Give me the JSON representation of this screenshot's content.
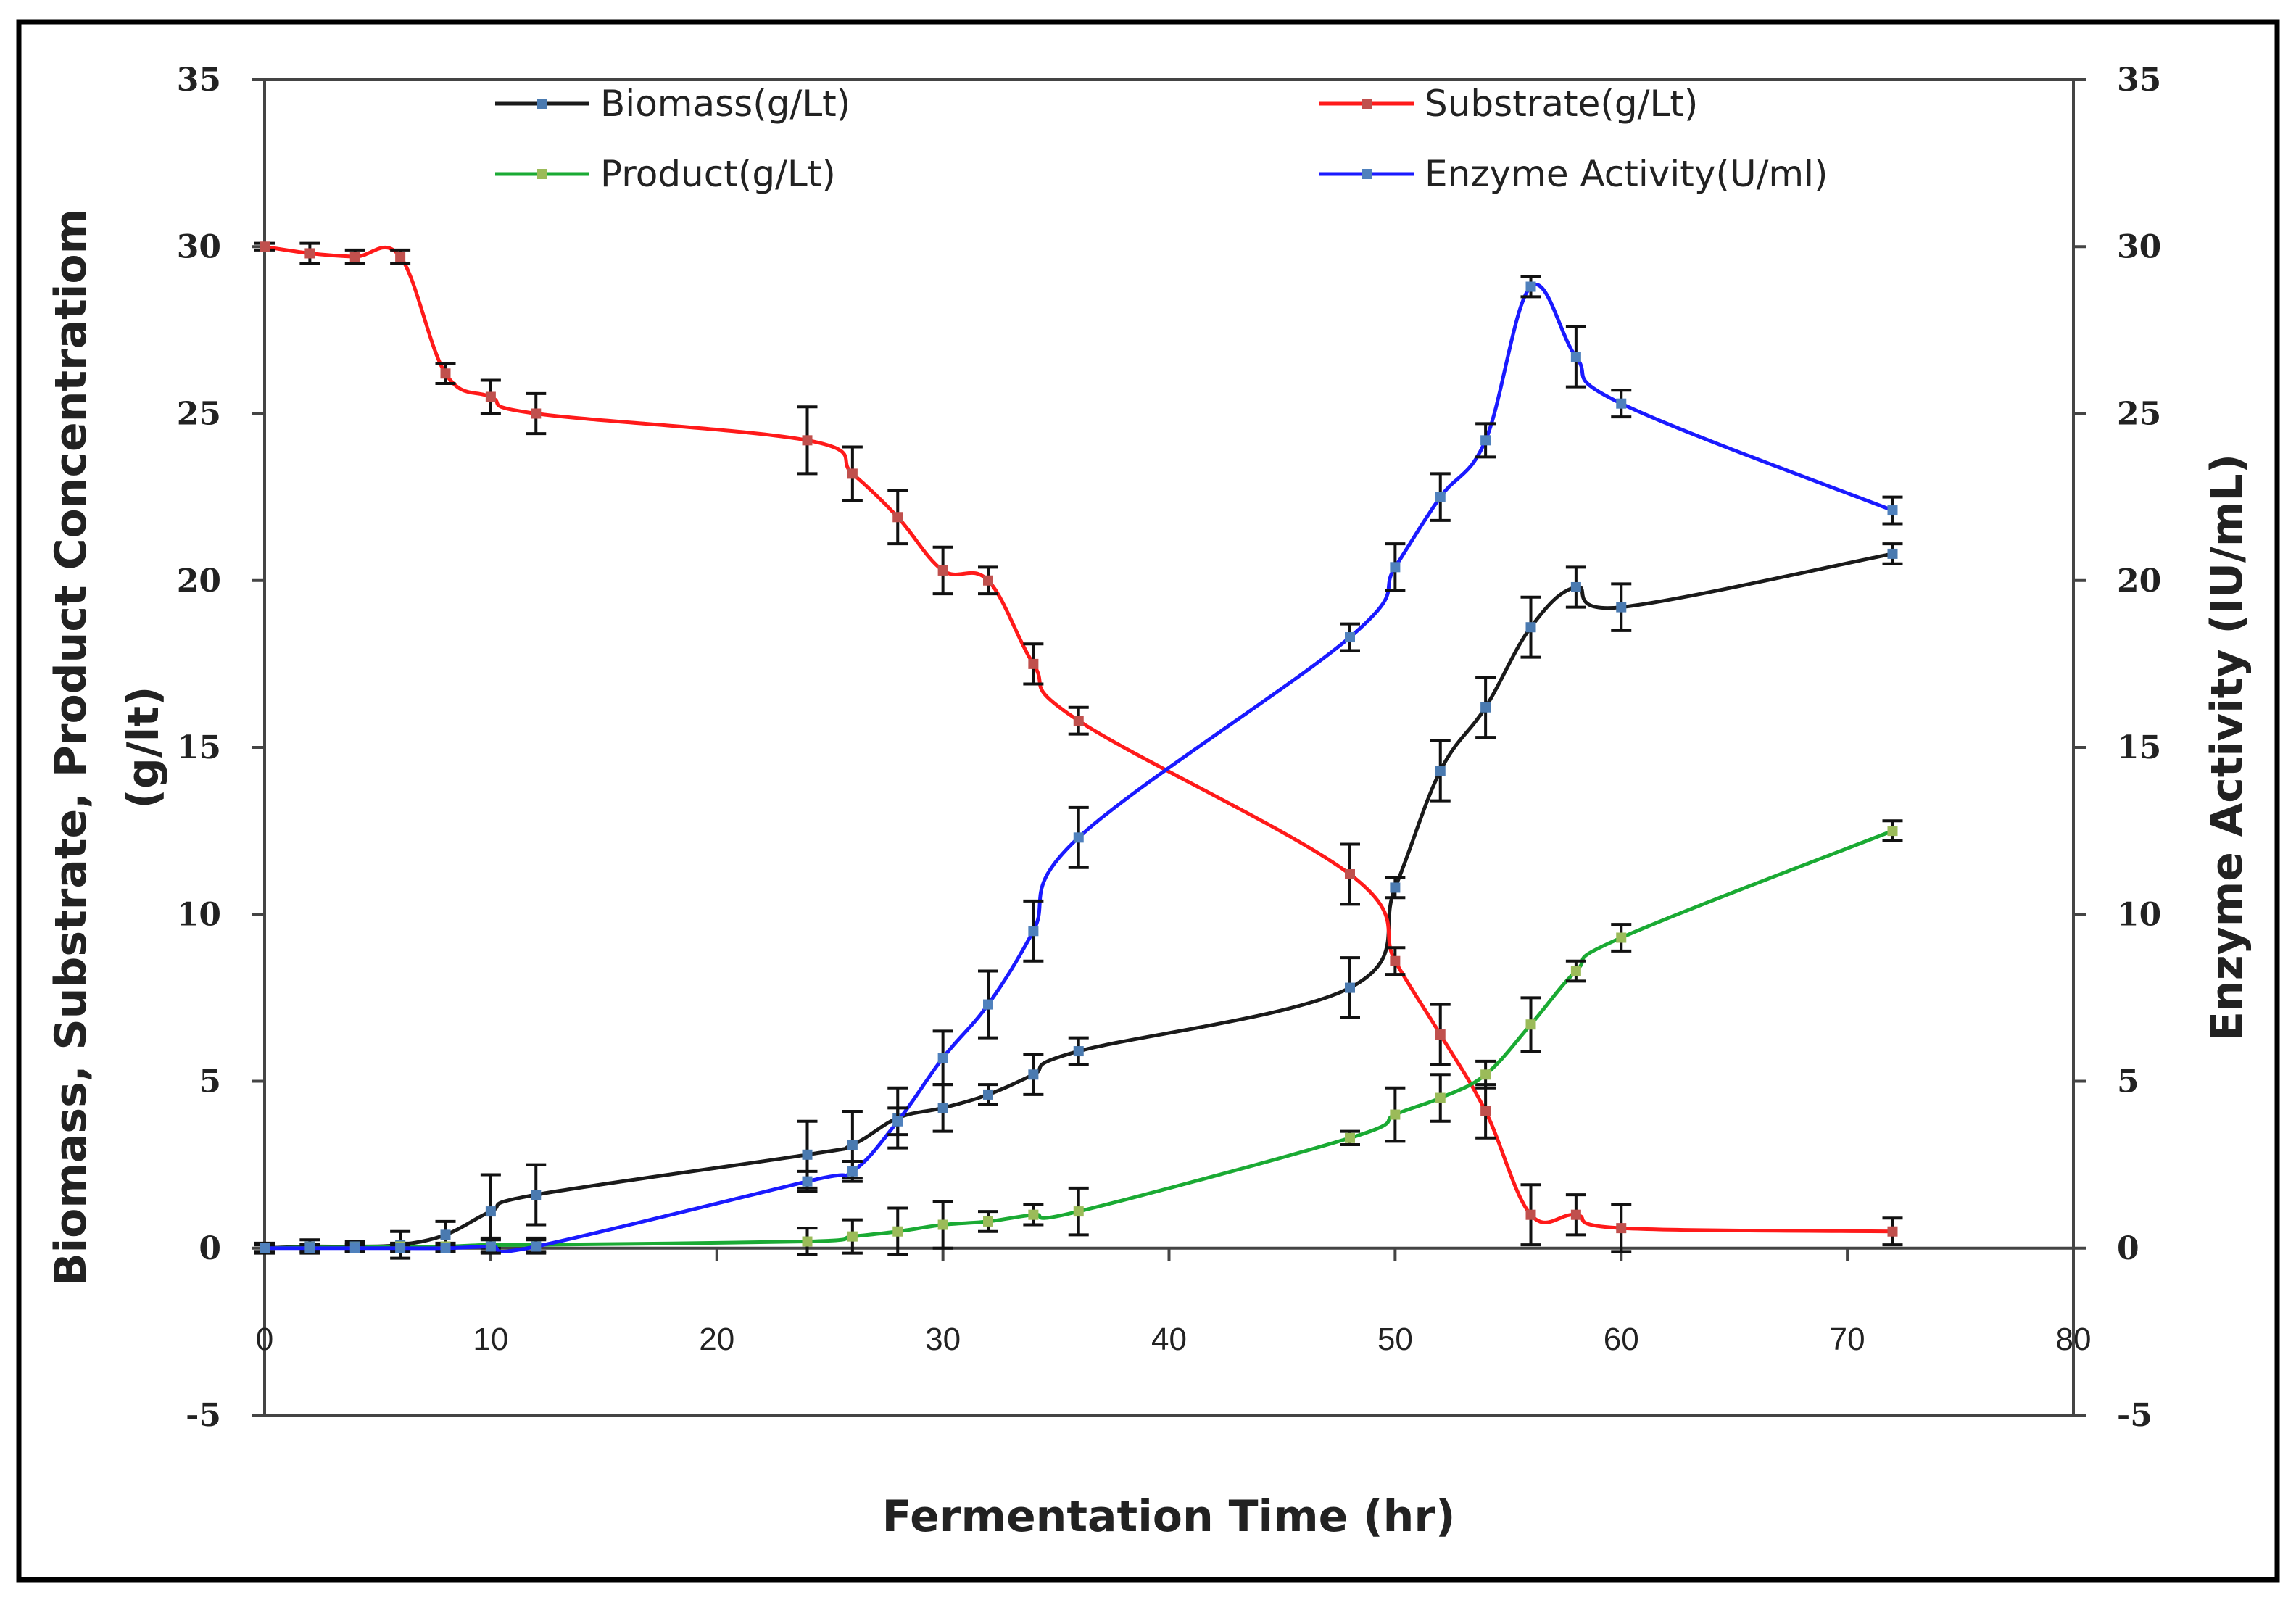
{
  "chart_data": {
    "type": "line",
    "title": "",
    "xlabel": "Fermentation Time (hr)",
    "ylabel_line1": "Biomass, Substrate, Product Concentratiom",
    "ylabel_line2": "(g/lt)",
    "y2label": "Enzyme Activity (IU/mL)",
    "xlim": [
      0,
      80
    ],
    "ylim": [
      -5,
      35
    ],
    "y2lim": [
      -5,
      35
    ],
    "x_ticks": [
      "0",
      "10",
      "20",
      "30",
      "40",
      "50",
      "60",
      "70",
      "80"
    ],
    "y_ticks": [
      "-5",
      "0",
      "5",
      "10",
      "15",
      "20",
      "25",
      "30",
      "35"
    ],
    "y2_ticks": [
      "-5",
      "0",
      "5",
      "10",
      "15",
      "20",
      "25",
      "30",
      "35"
    ],
    "grid": false,
    "legend_position": "top",
    "series": [
      {
        "name": "Biomass(g/Lt)",
        "color": "#1a1a1a",
        "marker_color": "#4a7ab0",
        "axis": "left",
        "x": [
          0,
          2,
          4,
          6,
          8,
          10,
          12,
          24,
          26,
          28,
          30,
          32,
          34,
          36,
          48,
          50,
          52,
          54,
          56,
          58,
          60,
          72
        ],
        "y": [
          0,
          0.05,
          0.05,
          0.1,
          0.4,
          1.1,
          1.6,
          2.8,
          3.1,
          3.9,
          4.2,
          4.6,
          5.2,
          5.9,
          7.8,
          10.8,
          14.3,
          16.2,
          18.6,
          19.8,
          19.2,
          20.8
        ],
        "err": [
          0.15,
          0.2,
          0.15,
          0.4,
          0.4,
          1.1,
          0.9,
          1.0,
          1.0,
          0.9,
          0.7,
          0.3,
          0.6,
          0.4,
          0.9,
          0.3,
          0.9,
          0.9,
          0.9,
          0.6,
          0.7,
          0.3
        ]
      },
      {
        "name": "Substrate(g/Lt)",
        "color": "#ff1a1a",
        "marker_color": "#c0504d",
        "axis": "left",
        "x": [
          0,
          2,
          4,
          6,
          8,
          10,
          12,
          24,
          26,
          28,
          30,
          32,
          34,
          36,
          48,
          50,
          52,
          54,
          56,
          58,
          60,
          72
        ],
        "y": [
          30.0,
          29.8,
          29.7,
          29.7,
          26.2,
          25.5,
          25.0,
          24.2,
          23.2,
          21.9,
          20.3,
          20.0,
          17.5,
          15.8,
          11.2,
          8.6,
          6.4,
          4.1,
          1.0,
          1.0,
          0.6,
          0.5
        ],
        "err": [
          0.1,
          0.3,
          0.2,
          0.2,
          0.3,
          0.5,
          0.6,
          1.0,
          0.8,
          0.8,
          0.7,
          0.4,
          0.6,
          0.4,
          0.9,
          0.4,
          0.9,
          0.8,
          0.9,
          0.6,
          0.7,
          0.4
        ]
      },
      {
        "name": "Product(g/Lt)",
        "color": "#1aaa33",
        "marker_color": "#9bbb59",
        "axis": "left",
        "x": [
          0,
          2,
          4,
          6,
          8,
          10,
          12,
          24,
          26,
          28,
          30,
          32,
          34,
          36,
          48,
          50,
          52,
          54,
          56,
          58,
          60,
          72
        ],
        "y": [
          0,
          0.02,
          0.02,
          0.05,
          0.05,
          0.1,
          0.1,
          0.2,
          0.35,
          0.5,
          0.7,
          0.8,
          1.0,
          1.1,
          3.3,
          4.0,
          4.5,
          5.2,
          6.7,
          8.3,
          9.3,
          12.5
        ],
        "err": [
          0.1,
          0.1,
          0.1,
          0.1,
          0.1,
          0.2,
          0.2,
          0.4,
          0.5,
          0.7,
          0.7,
          0.3,
          0.3,
          0.7,
          0.2,
          0.8,
          0.7,
          0.4,
          0.8,
          0.3,
          0.4,
          0.3
        ]
      },
      {
        "name": "Enzyme Activity(U/ml)",
        "color": "#1a1aff",
        "marker_color": "#4f81bd",
        "axis": "right",
        "x": [
          0,
          2,
          4,
          6,
          8,
          10,
          12,
          24,
          26,
          28,
          30,
          32,
          34,
          36,
          48,
          50,
          52,
          54,
          56,
          58,
          60,
          72
        ],
        "y": [
          0,
          0,
          0,
          0,
          0,
          0.05,
          0.05,
          2.0,
          2.3,
          3.8,
          5.7,
          7.3,
          9.5,
          12.3,
          18.3,
          20.4,
          22.5,
          24.2,
          28.8,
          26.7,
          25.3,
          22.1
        ],
        "err": [
          0.1,
          0.1,
          0.1,
          0.1,
          0.1,
          0.2,
          0.2,
          0.3,
          0.3,
          0.4,
          0.8,
          1.0,
          0.9,
          0.9,
          0.4,
          0.7,
          0.7,
          0.5,
          0.3,
          0.9,
          0.4,
          0.4
        ]
      }
    ]
  }
}
